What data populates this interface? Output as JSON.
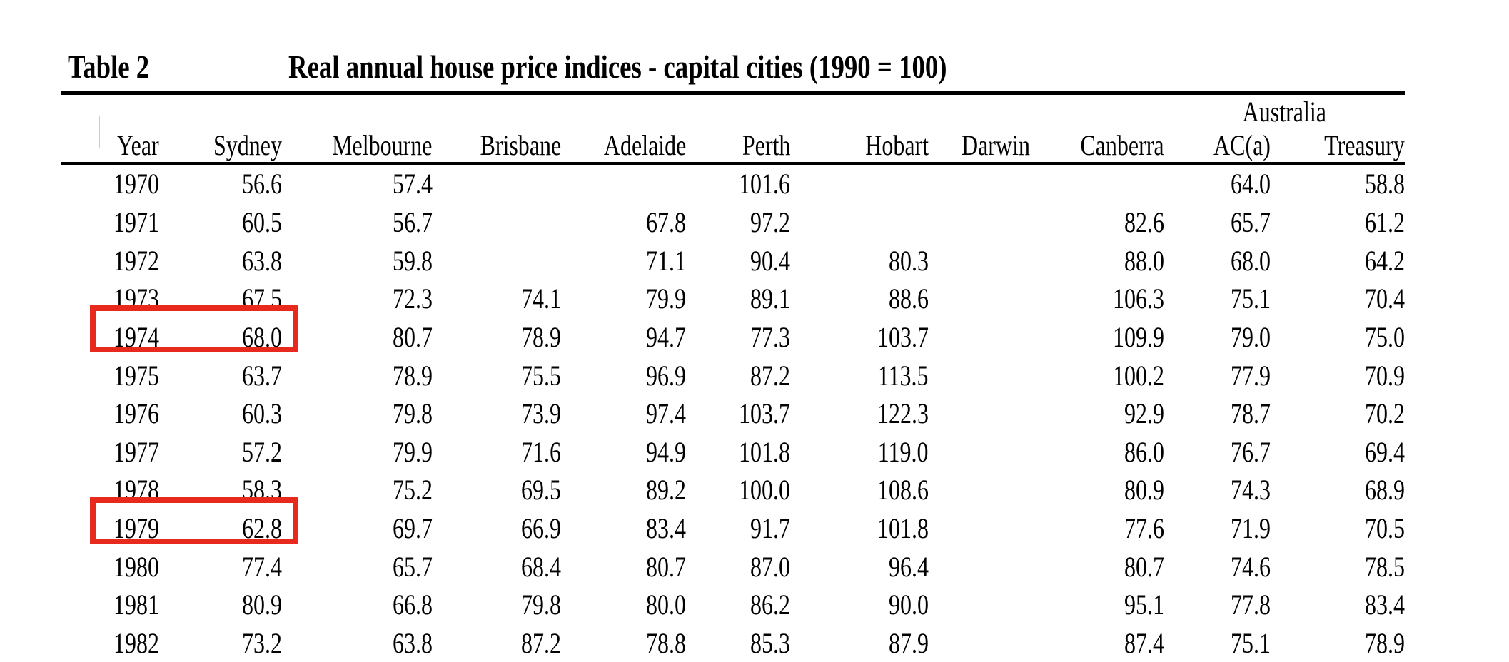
{
  "title": {
    "label": "Table 2",
    "text": "Real annual house price indices - capital cities (1990 = 100)"
  },
  "table": {
    "group_header": "Australia",
    "columns": [
      "Year",
      "Sydney",
      "Melbourne",
      "Brisbane",
      "Adelaide",
      "Perth",
      "Hobart",
      "Darwin",
      "Canberra",
      "AC(a)",
      "Treasury"
    ],
    "rows": [
      [
        "1970",
        "56.6",
        "57.4",
        "",
        "",
        "101.6",
        "",
        "",
        "",
        "64.0",
        "58.8"
      ],
      [
        "1971",
        "60.5",
        "56.7",
        "",
        "67.8",
        "97.2",
        "",
        "",
        "82.6",
        "65.7",
        "61.2"
      ],
      [
        "1972",
        "63.8",
        "59.8",
        "",
        "71.1",
        "90.4",
        "80.3",
        "",
        "88.0",
        "68.0",
        "64.2"
      ],
      [
        "1973",
        "67.5",
        "72.3",
        "74.1",
        "79.9",
        "89.1",
        "88.6",
        "",
        "106.3",
        "75.1",
        "70.4"
      ],
      [
        "1974",
        "68.0",
        "80.7",
        "78.9",
        "94.7",
        "77.3",
        "103.7",
        "",
        "109.9",
        "79.0",
        "75.0"
      ],
      [
        "1975",
        "63.7",
        "78.9",
        "75.5",
        "96.9",
        "87.2",
        "113.5",
        "",
        "100.2",
        "77.9",
        "70.9"
      ],
      [
        "1976",
        "60.3",
        "79.8",
        "73.9",
        "97.4",
        "103.7",
        "122.3",
        "",
        "92.9",
        "78.7",
        "70.2"
      ],
      [
        "1977",
        "57.2",
        "79.9",
        "71.6",
        "94.9",
        "101.8",
        "119.0",
        "",
        "86.0",
        "76.7",
        "69.4"
      ],
      [
        "1978",
        "58.3",
        "75.2",
        "69.5",
        "89.2",
        "100.0",
        "108.6",
        "",
        "80.9",
        "74.3",
        "68.9"
      ],
      [
        "1979",
        "62.8",
        "69.7",
        "66.9",
        "83.4",
        "91.7",
        "101.8",
        "",
        "77.6",
        "71.9",
        "70.5"
      ],
      [
        "1980",
        "77.4",
        "65.7",
        "68.4",
        "80.7",
        "87.0",
        "96.4",
        "",
        "80.7",
        "74.6",
        "78.5"
      ],
      [
        "1981",
        "80.9",
        "66.8",
        "79.8",
        "80.0",
        "86.2",
        "90.0",
        "",
        "95.1",
        "77.8",
        "83.4"
      ],
      [
        "1982",
        "73.2",
        "63.8",
        "87.2",
        "78.8",
        "85.3",
        "87.9",
        "",
        "87.4",
        "75.1",
        "78.9"
      ]
    ],
    "highlight_color": "#e8291e",
    "highlights": [
      {
        "row": "1974",
        "columns": [
          "Year",
          "Sydney"
        ],
        "values": [
          "1974",
          "68.0"
        ]
      },
      {
        "row": "1979",
        "columns": [
          "Year",
          "Sydney"
        ],
        "values": [
          "1979",
          "62.8"
        ]
      }
    ]
  }
}
